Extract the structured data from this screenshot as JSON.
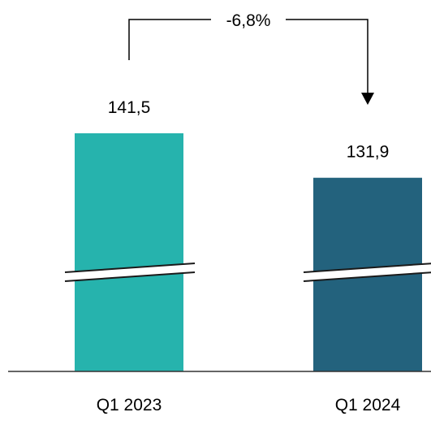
{
  "chart_data": {
    "type": "bar",
    "categories": [
      "Q1 2023",
      "Q1 2024"
    ],
    "values": [
      141.5,
      131.9
    ],
    "value_labels": [
      "141,5",
      "131,9"
    ],
    "colors": [
      "#26b3ad",
      "#23627d"
    ],
    "axis_broken": true,
    "comparison": {
      "label": "-6,8%",
      "from": "Q1 2023",
      "to": "Q1 2024"
    },
    "title": "",
    "xlabel": "",
    "ylabel": ""
  }
}
